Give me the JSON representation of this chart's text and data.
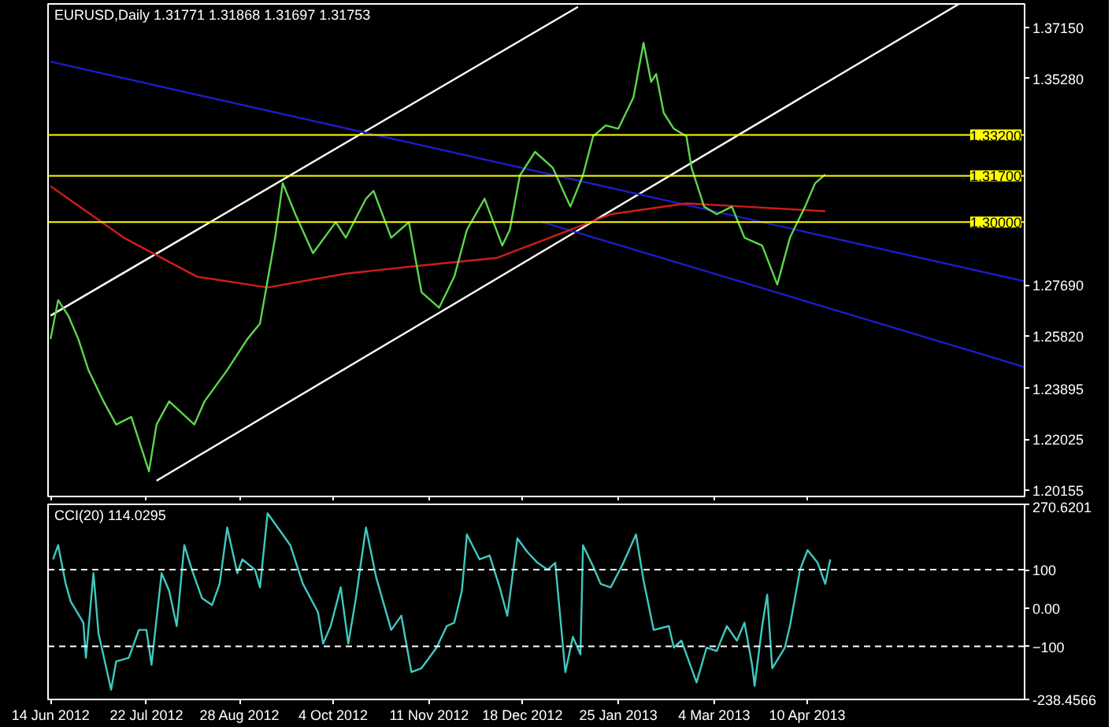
{
  "chart_data": [
    {
      "type": "line",
      "title": "EURUSD,Daily  1.31771 1.31868 1.31697 1.31753",
      "xlim": [
        "2012-06-13",
        "2013-07-05"
      ],
      "ylim": [
        1.1993,
        1.3801
      ],
      "tick_labels": "y",
      "grid": false,
      "xticks": [
        {
          "value": "2012-06-14",
          "label": null
        },
        {
          "value": "2012-07-22",
          "label": null
        },
        {
          "value": "2012-08-28",
          "label": null
        },
        {
          "value": "2012-10-04",
          "label": null
        },
        {
          "value": "2012-11-11",
          "label": null
        },
        {
          "value": "2012-12-18",
          "label": null
        },
        {
          "value": "2013-01-25",
          "label": null
        },
        {
          "value": "2013-03-04",
          "label": null
        },
        {
          "value": "2013-04-10",
          "label": null
        }
      ],
      "yticks": [
        {
          "value": 1.3715,
          "label": "1.37150"
        },
        {
          "value": 1.3528,
          "label": "1.35280"
        },
        {
          "value": 1.2769,
          "label": "1.27690"
        },
        {
          "value": 1.2582,
          "label": "1.25820"
        },
        {
          "value": 1.23895,
          "label": "1.23895"
        },
        {
          "value": 1.22025,
          "label": "1.22025"
        },
        {
          "value": 1.20155,
          "label": "1.20155"
        }
      ],
      "ref_lines": [
        {
          "axis": "y",
          "value": 1.332,
          "label": "1.33200",
          "color": "#ffff00"
        },
        {
          "axis": "y",
          "value": 1.317,
          "label": "1.31700",
          "color": "#ffff00"
        },
        {
          "axis": "y",
          "value": 1.3,
          "label": "1.30000",
          "color": "#ffff00"
        }
      ],
      "series": [
        {
          "color": "#ffffff",
          "x": [
            "2012-06-14",
            "2013-01-09"
          ],
          "values": [
            1.2657,
            1.379
          ]
        },
        {
          "color": "#ffffff",
          "x": [
            "2012-07-26",
            "2013-06-09"
          ],
          "values": [
            1.2051,
            1.3801
          ]
        },
        {
          "color": "#1c1cc8",
          "x": [
            "2012-06-14",
            "2013-07-05"
          ],
          "values": [
            1.3589,
            1.2783
          ]
        },
        {
          "color": "#1c1cc8",
          "x": [
            "2012-12-26",
            "2013-07-05"
          ],
          "values": [
            1.3,
            1.2468
          ]
        },
        {
          "color": "#d01c1c",
          "x": [
            "2012-06-14",
            "2012-07-13",
            "2012-08-11",
            "2012-09-08",
            "2012-10-09",
            "2012-11-07",
            "2012-12-08",
            "2013-01-06",
            "2013-01-22",
            "2013-02-21",
            "2013-03-16",
            "2013-04-17"
          ],
          "values": [
            1.3132,
            1.2943,
            1.28,
            1.276,
            1.2811,
            1.284,
            1.2869,
            1.2972,
            1.3029,
            1.3069,
            1.3057,
            1.304
          ]
        },
        {
          "color": "#5cd64c",
          "x": [
            "2012-06-14",
            "2012-06-17",
            "2012-06-21",
            "2012-06-25",
            "2012-06-29",
            "2012-07-05",
            "2012-07-10",
            "2012-07-16",
            "2012-07-23",
            "2012-07-26",
            "2012-07-31",
            "2012-08-10",
            "2012-08-14",
            "2012-08-23",
            "2012-08-31",
            "2012-09-05",
            "2012-09-11",
            "2012-09-14",
            "2012-09-19",
            "2012-09-26",
            "2012-10-05",
            "2012-10-09",
            "2012-10-17",
            "2012-10-20",
            "2012-10-27",
            "2012-11-03",
            "2012-11-08",
            "2012-11-15",
            "2012-11-21",
            "2012-11-26",
            "2012-12-03",
            "2012-12-10",
            "2012-12-13",
            "2012-12-17",
            "2012-12-23",
            "2012-12-30",
            "2013-01-06",
            "2013-01-11",
            "2013-01-15",
            "2013-01-20",
            "2013-01-25",
            "2013-01-31",
            "2013-02-04",
            "2013-02-07",
            "2013-02-09",
            "2013-02-12",
            "2013-02-16",
            "2013-02-21",
            "2013-02-23",
            "2013-02-28",
            "2013-03-05",
            "2013-03-11",
            "2013-03-16",
            "2013-03-23",
            "2013-03-29",
            "2013-04-03",
            "2013-04-09",
            "2013-04-13",
            "2013-04-17"
          ],
          "values": [
            1.2571,
            1.2714,
            1.2657,
            1.2571,
            1.2457,
            1.2342,
            1.2257,
            1.2285,
            1.2085,
            1.2257,
            1.2342,
            1.2257,
            1.2342,
            1.2457,
            1.2571,
            1.2628,
            1.2943,
            1.3143,
            1.3029,
            1.2886,
            1.3,
            1.2943,
            1.3086,
            1.3115,
            1.2943,
            1.3,
            1.2743,
            1.2686,
            1.28,
            1.2972,
            1.3086,
            1.2914,
            1.2972,
            1.3172,
            1.3258,
            1.32,
            1.3057,
            1.3172,
            1.3315,
            1.3355,
            1.3343,
            1.3458,
            1.3658,
            1.3515,
            1.3544,
            1.3401,
            1.3343,
            1.3315,
            1.32,
            1.3057,
            1.3029,
            1.3057,
            1.2943,
            1.2914,
            1.2771,
            1.2943,
            1.3057,
            1.3143,
            1.3175
          ]
        }
      ]
    },
    {
      "type": "line",
      "title": "CCI(20) 114.0295",
      "xlim": [
        "2012-06-13",
        "2013-07-05"
      ],
      "ylim": [
        -238.4566,
        270.6201
      ],
      "grid": false,
      "xticks": [
        {
          "value": "2012-06-14",
          "label": "14 Jun 2012"
        },
        {
          "value": "2012-07-22",
          "label": "22 Jul 2012"
        },
        {
          "value": "2012-08-28",
          "label": "28 Aug 2012"
        },
        {
          "value": "2012-10-04",
          "label": "4 Oct 2012"
        },
        {
          "value": "2012-11-11",
          "label": "11 Nov 2012"
        },
        {
          "value": "2012-12-18",
          "label": "18 Dec 2012"
        },
        {
          "value": "2013-01-25",
          "label": "25 Jan 2013"
        },
        {
          "value": "2013-03-04",
          "label": "4 Mar 2013"
        },
        {
          "value": "2013-04-10",
          "label": "10 Apr 2013"
        }
      ],
      "yticks": [
        {
          "value": 270.6201,
          "label": "270.6201"
        },
        100,
        {
          "value": 0,
          "label": "0.00"
        },
        -100,
        {
          "value": -238.4566,
          "label": "-238.4566"
        }
      ],
      "ref_lines": [
        {
          "axis": "y",
          "value": 100,
          "color": "#ffffff",
          "line_style": "dashed"
        },
        {
          "axis": "y",
          "value": -100,
          "color": "#ffffff",
          "line_style": "dashed"
        }
      ],
      "series": [
        {
          "color": "#40c8c0",
          "x": [
            "2012-06-15",
            "2012-06-17",
            "2012-06-20",
            "2012-06-22",
            "2012-06-27",
            "2012-06-28",
            "2012-07-01",
            "2012-07-03",
            "2012-07-08",
            "2012-07-10",
            "2012-07-15",
            "2012-07-19",
            "2012-07-22",
            "2012-07-24",
            "2012-07-28",
            "2012-07-31",
            "2012-08-03",
            "2012-08-06",
            "2012-08-09",
            "2012-08-13",
            "2012-08-17",
            "2012-08-20",
            "2012-08-23",
            "2012-08-27",
            "2012-08-29",
            "2012-09-03",
            "2012-09-05",
            "2012-09-08",
            "2012-09-14",
            "2012-09-17",
            "2012-09-22",
            "2012-09-28",
            "2012-09-30",
            "2012-10-03",
            "2012-10-07",
            "2012-10-10",
            "2012-10-13",
            "2012-10-17",
            "2012-10-21",
            "2012-10-27",
            "2012-10-31",
            "2012-11-04",
            "2012-11-08",
            "2012-11-14",
            "2012-11-18",
            "2012-11-21",
            "2012-11-24",
            "2012-11-26",
            "2012-12-01",
            "2012-12-05",
            "2012-12-09",
            "2012-12-12",
            "2012-12-16",
            "2012-12-20",
            "2012-12-24",
            "2012-12-28",
            "2012-12-31",
            "2013-01-04",
            "2013-01-07",
            "2013-01-10",
            "2013-01-11",
            "2013-01-15",
            "2013-01-18",
            "2013-01-22",
            "2013-01-27",
            "2013-02-01",
            "2013-02-04",
            "2013-02-08",
            "2013-02-14",
            "2013-02-16",
            "2013-02-19",
            "2013-02-22",
            "2013-02-25",
            "2013-03-01",
            "2013-03-05",
            "2013-03-09",
            "2013-03-13",
            "2013-03-16",
            "2013-03-19",
            "2013-03-20",
            "2013-03-23",
            "2013-03-25",
            "2013-03-27",
            "2013-04-01",
            "2013-04-03",
            "2013-04-07",
            "2013-04-10",
            "2013-04-14",
            "2013-04-17",
            "2013-04-19"
          ],
          "values": [
            127,
            164,
            63,
            17,
            -38,
            -130,
            91,
            -66,
            -213,
            -139,
            -130,
            -57,
            -57,
            -148,
            91,
            45,
            -47,
            164,
            100,
            26,
            8,
            63,
            210,
            91,
            127,
            100,
            54,
            247,
            192,
            164,
            63,
            -11,
            -93,
            -47,
            54,
            -93,
            26,
            210,
            81,
            -57,
            -20,
            -167,
            -157,
            -103,
            -47,
            -38,
            45,
            192,
            127,
            137,
            54,
            -20,
            182,
            146,
            118,
            100,
            118,
            -167,
            -75,
            -121,
            164,
            109,
            63,
            54,
            118,
            192,
            72,
            -57,
            -47,
            -103,
            -85,
            -139,
            -194,
            -103,
            -112,
            -47,
            -85,
            -38,
            -148,
            -203,
            -47,
            35,
            -157,
            -103,
            -47,
            100,
            151,
            118,
            63,
            127
          ]
        }
      ]
    }
  ]
}
